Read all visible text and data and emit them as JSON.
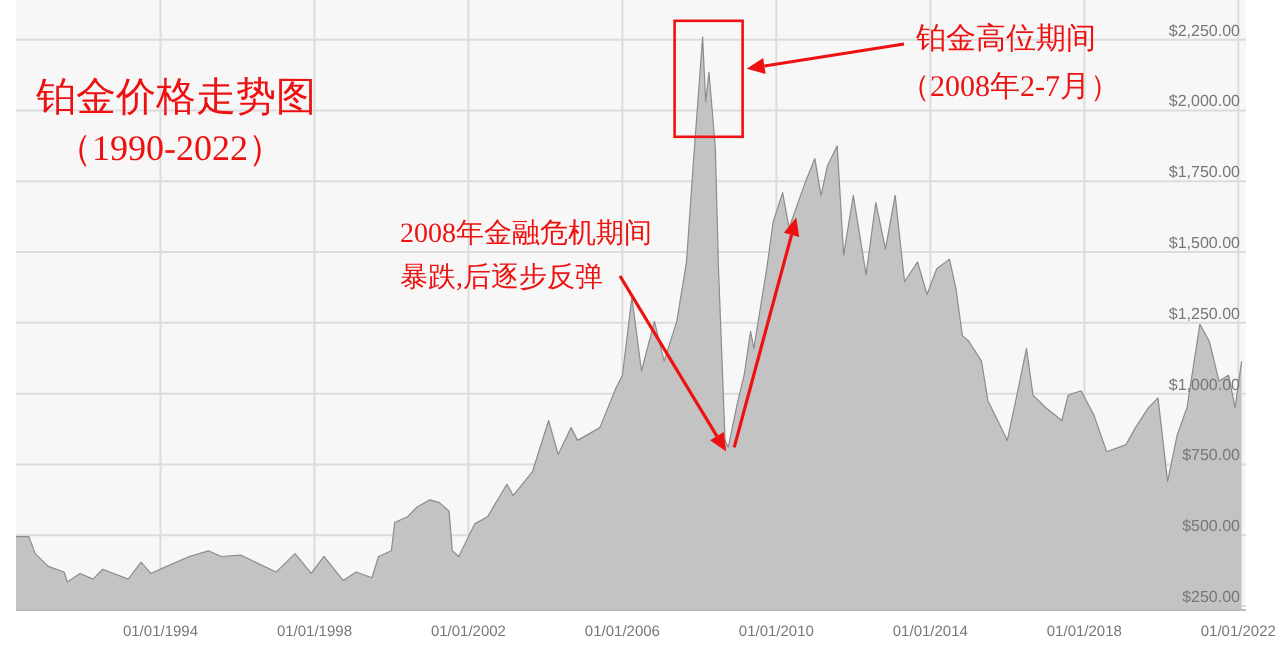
{
  "chart_data": {
    "type": "area",
    "title": "铂金价格走势图",
    "subtitle": "（1990-2022）",
    "x": [
      "1990-04",
      "1990-08",
      "1990-10",
      "1991-02",
      "1991-07",
      "1991-08",
      "1991-12",
      "1992-04",
      "1992-07",
      "1993-03",
      "1993-07",
      "1993-10",
      "1994-03",
      "1994-10",
      "1995-04",
      "1995-08",
      "1996-02",
      "1997-01",
      "1997-07",
      "1997-12",
      "1998-04",
      "1998-10",
      "1999-02",
      "1999-07",
      "1999-09",
      "2000-01",
      "2000-02",
      "2000-06",
      "2000-09",
      "2001-01",
      "2001-04",
      "2001-07",
      "2001-08",
      "2001-10",
      "2002-03",
      "2002-07",
      "2003-01",
      "2003-03",
      "2003-09",
      "2004-02",
      "2004-05",
      "2004-09",
      "2004-11",
      "2005-06",
      "2005-11",
      "2006-01",
      "2006-04",
      "2006-07",
      "2006-11",
      "2007-02",
      "2007-06",
      "2007-09",
      "2007-11",
      "2008-02",
      "2008-03",
      "2008-04",
      "2008-05",
      "2008-06",
      "2008-07",
      "2008-09",
      "2008-10",
      "2009-01",
      "2009-03",
      "2009-05",
      "2009-06",
      "2009-10",
      "2009-12",
      "2010-03",
      "2010-05",
      "2010-10",
      "2011-01",
      "2011-03",
      "2011-05",
      "2011-08",
      "2011-10",
      "2012-01",
      "2012-05",
      "2012-08",
      "2012-11",
      "2013-02",
      "2013-05",
      "2013-09",
      "2013-12",
      "2014-03",
      "2014-07",
      "2014-09",
      "2014-11",
      "2015-01",
      "2015-05",
      "2015-07",
      "2016-01",
      "2016-04",
      "2016-07",
      "2016-09",
      "2017-01",
      "2017-06",
      "2017-08",
      "2017-12",
      "2018-04",
      "2018-08",
      "2019-02",
      "2019-05",
      "2019-09",
      "2019-12",
      "2020-03",
      "2020-06",
      "2020-09",
      "2021-01",
      "2021-04",
      "2021-07",
      "2021-10",
      "2021-12",
      "2022-02"
    ],
    "series": [
      {
        "color": "#8c8c8c",
        "values": [
          495,
          495,
          435,
          390,
          370,
          335,
          365,
          345,
          380,
          345,
          405,
          365,
          390,
          425,
          445,
          425,
          430,
          370,
          435,
          365,
          425,
          340,
          370,
          350,
          425,
          445,
          545,
          565,
          600,
          625,
          615,
          585,
          445,
          425,
          540,
          565,
          680,
          640,
          725,
          905,
          785,
          880,
          835,
          880,
          1020,
          1065,
          1340,
          1080,
          1255,
          1115,
          1255,
          1465,
          1795,
          2260,
          2030,
          2135,
          2005,
          1865,
          1440,
          835,
          810,
          975,
          1065,
          1220,
          1160,
          1440,
          1605,
          1710,
          1585,
          1745,
          1830,
          1700,
          1805,
          1875,
          1490,
          1700,
          1420,
          1675,
          1510,
          1700,
          1395,
          1465,
          1350,
          1440,
          1475,
          1370,
          1205,
          1185,
          1115,
          975,
          835,
          995,
          1160,
          995,
          950,
          905,
          995,
          1010,
          925,
          795,
          820,
          880,
          950,
          985,
          690,
          855,
          950,
          1245,
          1185,
          1045,
          1065,
          950,
          1115
        ]
      }
    ],
    "xlim": [
      "1990-04-01",
      "2022-03-15"
    ],
    "ylim": [
      236,
      2390
    ],
    "xticks": [
      {
        "value": "1994-01-01",
        "label": "01/01/1994"
      },
      {
        "value": "1998-01-01",
        "label": "01/01/1998"
      },
      {
        "value": "2002-01-01",
        "label": "01/01/2002"
      },
      {
        "value": "2006-01-01",
        "label": "01/01/2006"
      },
      {
        "value": "2010-01-01",
        "label": "01/01/2010"
      },
      {
        "value": "2014-01-01",
        "label": "01/01/2014"
      },
      {
        "value": "2018-01-01",
        "label": "01/01/2018"
      },
      {
        "value": "2022-01-01",
        "label": "01/01/2022"
      }
    ],
    "yticks": [
      {
        "value": 250,
        "label": "$250.00"
      },
      {
        "value": 500,
        "label": "$500.00"
      },
      {
        "value": 750,
        "label": "$750.00"
      },
      {
        "value": 1000,
        "label": "$1,000.00"
      },
      {
        "value": 1250,
        "label": "$1,250.00"
      },
      {
        "value": 1500,
        "label": "$1,500.00"
      },
      {
        "value": 1750,
        "label": "$1,750.00"
      },
      {
        "value": 2000,
        "label": "$2,000.00"
      },
      {
        "value": 2250,
        "label": "$2,250.00"
      }
    ],
    "grid": true,
    "annotations": [
      "铂金高位期间",
      "（2008年2-7月）",
      "2008年金融危机期间",
      {
        "text": "暴跌,后逐步反弹",
        "x": "2008-10",
        "y": 810
      }
    ]
  }
}
